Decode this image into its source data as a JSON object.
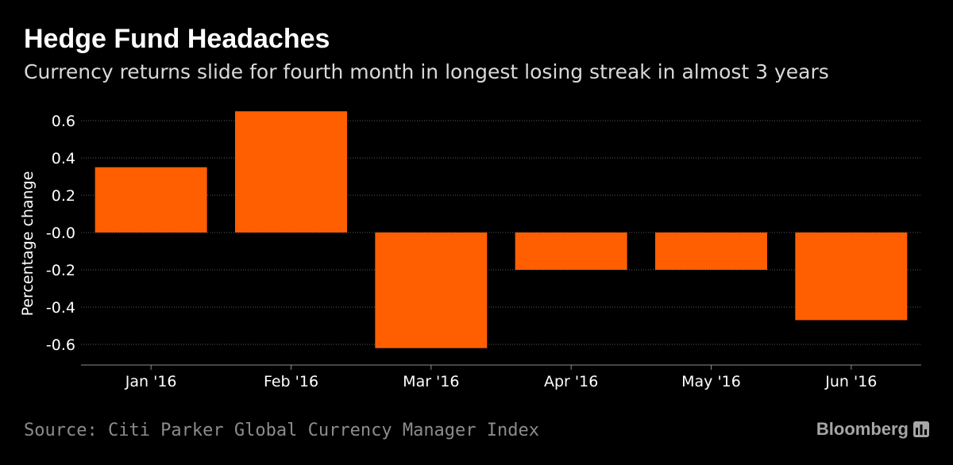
{
  "header": {
    "title": "Hedge Fund Headaches",
    "subtitle": "Currency returns slide for fourth month in longest losing streak in almost 3 years"
  },
  "footer": {
    "source": "Source: Citi Parker Global Currency Manager Index",
    "brand": "Bloomberg"
  },
  "colors": {
    "bar": "#ff5f00",
    "background": "#000000",
    "axis": "#8c8c8c",
    "grid": "#5a5a5a"
  },
  "icons": {
    "brand_logo": "bar-chart-icon"
  },
  "chart_data": {
    "type": "bar",
    "title": "Hedge Fund Headaches",
    "subtitle": "Currency returns slide for fourth month in longest losing streak in almost 3 years",
    "xlabel": "",
    "ylabel": "Percentage change",
    "categories": [
      "Jan '16",
      "Feb '16",
      "Mar '16",
      "Apr '16",
      "May '16",
      "Jun '16"
    ],
    "values": [
      0.35,
      0.65,
      -0.62,
      -0.2,
      -0.2,
      -0.47
    ],
    "ylim": [
      -0.7,
      0.7
    ],
    "yticks": [
      0.6,
      0.4,
      0.2,
      0.0,
      -0.2,
      -0.4,
      -0.6
    ],
    "ytick_labels": [
      "0.6",
      "0.4",
      "0.2",
      "-0.0",
      "-0.2",
      "-0.4",
      "-0.6"
    ],
    "grid": true,
    "legend": "none"
  }
}
